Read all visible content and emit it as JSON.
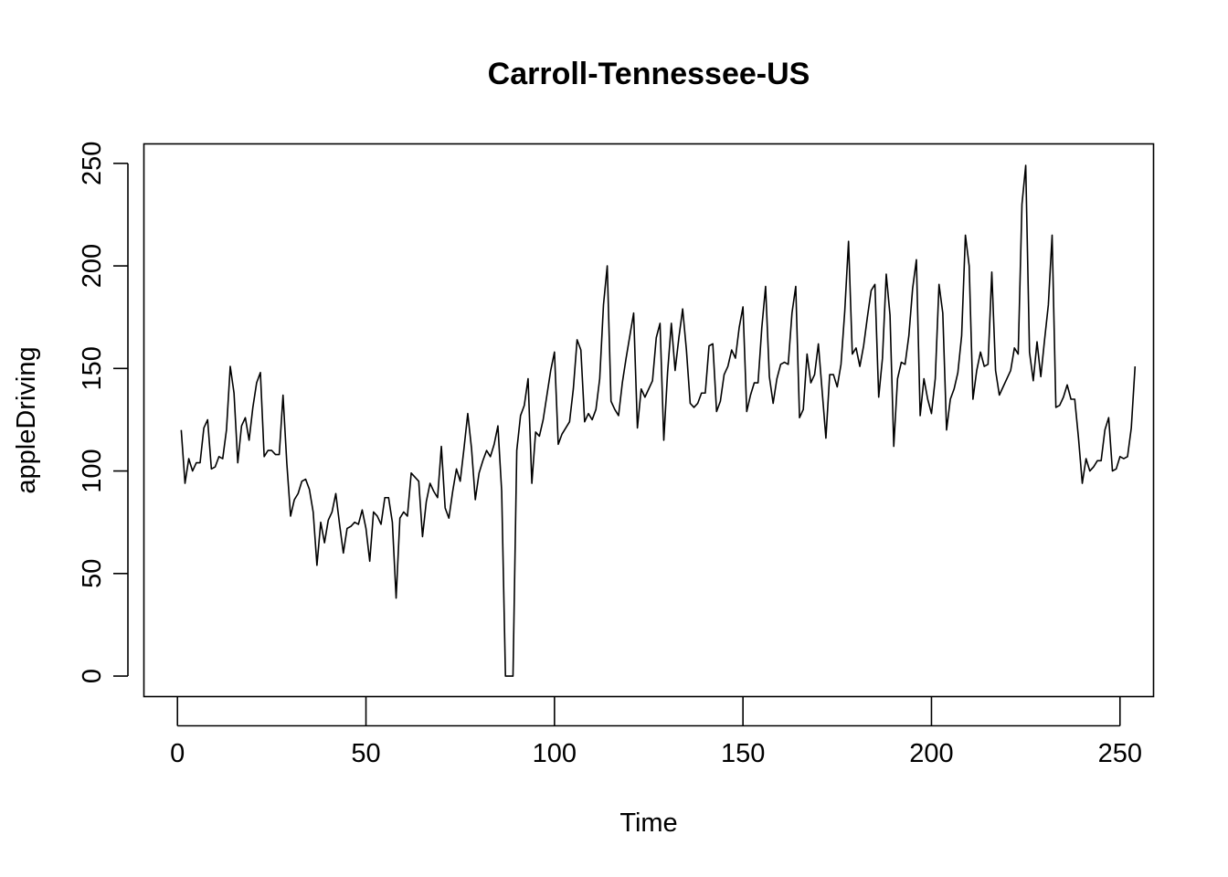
{
  "chart_data": {
    "type": "line",
    "title": "Carroll-Tennessee-US",
    "xlabel": "Time",
    "ylabel": "appleDriving",
    "xlim": [
      -8.9,
      258.9
    ],
    "ylim": [
      -10,
      259.5
    ],
    "x_ticks": [
      0,
      50,
      100,
      150,
      200,
      250
    ],
    "y_ticks": [
      0,
      50,
      100,
      150,
      200,
      250
    ],
    "grid": false,
    "legend": "none",
    "series": [
      {
        "x_start": 1,
        "values": [
          120,
          94,
          106,
          100,
          104,
          104,
          121,
          125,
          101,
          102,
          107,
          106,
          120,
          151,
          138,
          104,
          122,
          126,
          115,
          131,
          143,
          148,
          107,
          110,
          110,
          108,
          108,
          137,
          104,
          78,
          86,
          89,
          95,
          96,
          91,
          80,
          54,
          75,
          65,
          76,
          80,
          89,
          74,
          60,
          72,
          73,
          75,
          74,
          81,
          72,
          56,
          80,
          78,
          74,
          87,
          87,
          75,
          38,
          77,
          80,
          78,
          99,
          97,
          95,
          68,
          85,
          94,
          90,
          87,
          112,
          82,
          77,
          90,
          101,
          95,
          111,
          128,
          111,
          86,
          99,
          105,
          110,
          107,
          113,
          122,
          90,
          0,
          0,
          0,
          110,
          127,
          132,
          145,
          94,
          119,
          117,
          125,
          137,
          149,
          158,
          113,
          118,
          121,
          124,
          140,
          164,
          159,
          124,
          128,
          125,
          130,
          145,
          181,
          200,
          134,
          130,
          127,
          143,
          155,
          166,
          177,
          121,
          140,
          136,
          140,
          144,
          165,
          172,
          115,
          148,
          172,
          149,
          165,
          179,
          159,
          133,
          131,
          133,
          138,
          138,
          161,
          162,
          129,
          134,
          147,
          151,
          159,
          155,
          170,
          180,
          129,
          137,
          143,
          143,
          170,
          190,
          146,
          133,
          145,
          152,
          153,
          152,
          177,
          190,
          126,
          130,
          157,
          143,
          147,
          162,
          139,
          116,
          147,
          147,
          141,
          152,
          178,
          212,
          157,
          160,
          151,
          161,
          175,
          188,
          191,
          136,
          155,
          196,
          176,
          112,
          145,
          153,
          152,
          166,
          189,
          203,
          127,
          145,
          135,
          128,
          145,
          191,
          177,
          120,
          135,
          140,
          148,
          166,
          215,
          200,
          135,
          149,
          158,
          151,
          152,
          197,
          149,
          137,
          141,
          145,
          149,
          160,
          157,
          230,
          249,
          158,
          144,
          163,
          146,
          164,
          181,
          215,
          131,
          132,
          136,
          142,
          135,
          135,
          116,
          94,
          106,
          100,
          102,
          105,
          105,
          120,
          126,
          100,
          101,
          107,
          106,
          107,
          121,
          151
        ]
      }
    ]
  }
}
